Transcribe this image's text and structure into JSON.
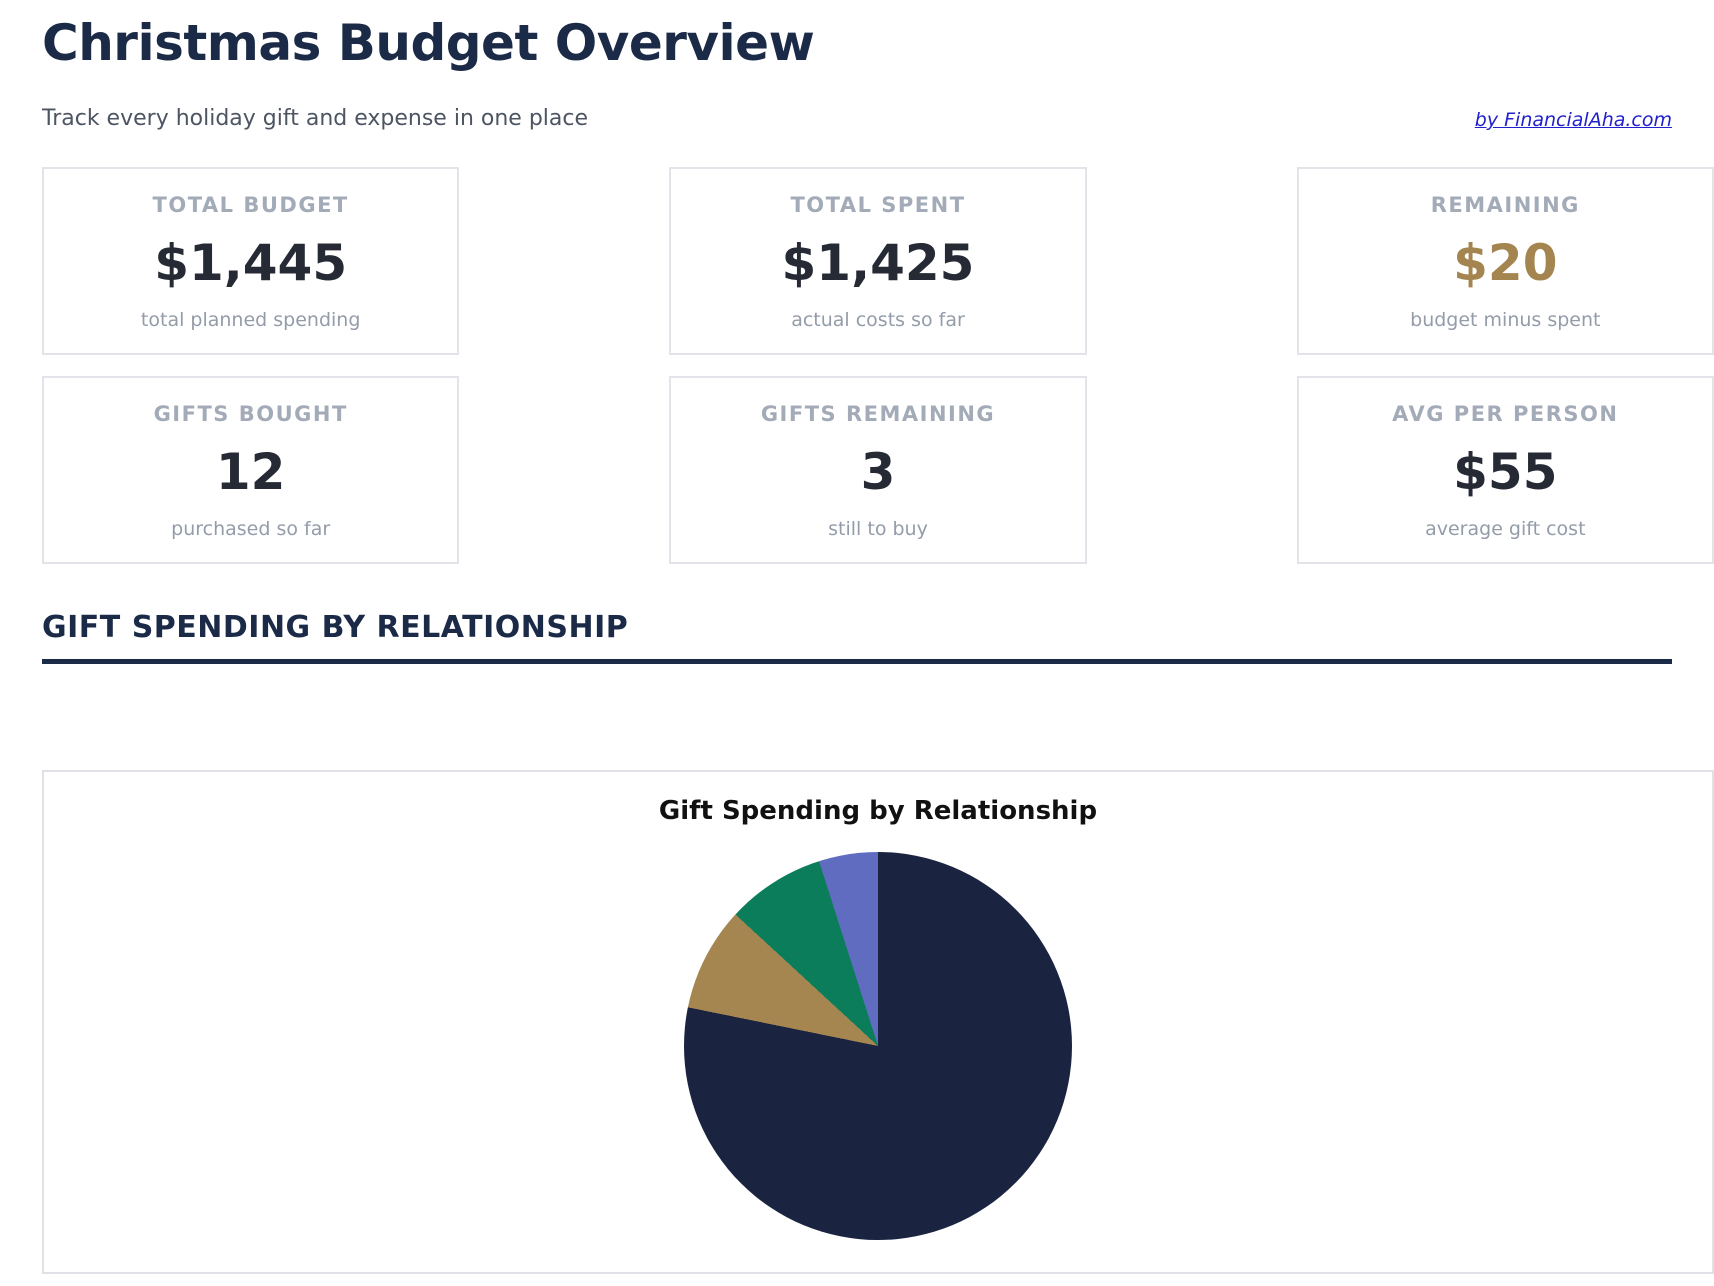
{
  "page": {
    "title": "Christmas Budget Overview",
    "subtitle": "Track every holiday gift and expense in one place",
    "attribution": "by FinancialAha.com"
  },
  "stats": [
    {
      "label": "TOTAL BUDGET",
      "value": "$1,445",
      "caption": "total planned spending",
      "value_color": "#252a35"
    },
    {
      "label": "TOTAL SPENT",
      "value": "$1,425",
      "caption": "actual costs so far",
      "value_color": "#252a35"
    },
    {
      "label": "REMAINING",
      "value": "$20",
      "caption": "budget minus spent",
      "value_color": "#a5854f"
    },
    {
      "label": "GIFTS BOUGHT",
      "value": "12",
      "caption": "purchased so far",
      "value_color": "#252a35"
    },
    {
      "label": "GIFTS REMAINING",
      "value": "3",
      "caption": "still to buy",
      "value_color": "#252a35"
    },
    {
      "label": "AVG PER PERSON",
      "value": "$55",
      "caption": "average gift cost",
      "value_color": "#252a35"
    }
  ],
  "section": {
    "heading": "GIFT SPENDING BY RELATIONSHIP"
  },
  "chart_data": {
    "type": "pie",
    "title": "Gift Spending by Relationship",
    "start_position": "12 o'clock, clockwise",
    "legend_position": "none visible",
    "segments": [
      {
        "color": "#1a2340",
        "percent": 78.2,
        "start_deg": 0,
        "end_deg": 281.5
      },
      {
        "color": "#a58650",
        "percent": 8.7,
        "start_deg": 281.5,
        "end_deg": 312.7
      },
      {
        "color": "#0b7d5a",
        "percent": 8.2,
        "start_deg": 312.7,
        "end_deg": 342.3
      },
      {
        "color": "#5f6cc0",
        "percent": 4.9,
        "start_deg": 342.3,
        "end_deg": 360
      }
    ]
  },
  "colors": {
    "heading_navy": "#1b2a47",
    "accent_gold": "#a5854f",
    "link_blue": "#2121cc",
    "card_border": "#e3e3ea"
  }
}
